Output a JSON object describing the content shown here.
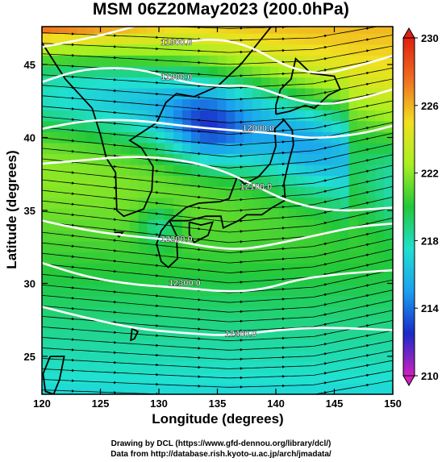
{
  "chart_data": {
    "type": "heatmap",
    "title": "MSM 06Z20May2023 (200.0hPa)",
    "xlabel": "Longitude (degrees)",
    "ylabel": "Latitude  (degrees)",
    "xlim": [
      120,
      150
    ],
    "ylim": [
      22.4,
      47.6
    ],
    "xticks": [
      120,
      125,
      130,
      135,
      140,
      145,
      150
    ],
    "yticks": [
      25,
      30,
      35,
      40,
      45
    ],
    "colorbar": {
      "min": 210,
      "max": 230,
      "ticks": [
        210,
        214,
        218,
        222,
        226,
        230
      ],
      "colors": [
        "#d020c0",
        "#1a2ac8",
        "#1aa0f0",
        "#20e0d0",
        "#22c83a",
        "#a8f020",
        "#f0e020",
        "#f07020",
        "#e02010"
      ]
    },
    "contours": [
      {
        "label": "11900.0",
        "points": [
          [
            120,
            46.2
          ],
          [
            124,
            46.8
          ],
          [
            127,
            47.4
          ],
          [
            129.5,
            48
          ]
        ]
      },
      {
        "label": "11900.0",
        "points": [
          [
            131.5,
            46.5
          ],
          [
            135,
            46.8
          ],
          [
            138,
            46.2
          ],
          [
            141,
            44.8
          ],
          [
            144,
            44.3
          ],
          [
            147,
            44.9
          ],
          [
            150,
            45.6
          ]
        ]
      },
      {
        "label": "11900.0",
        "points": [
          [
            120,
            43.8
          ],
          [
            123,
            44.6
          ],
          [
            126,
            44.8
          ],
          [
            129,
            44.6
          ],
          [
            132,
            43.8
          ],
          [
            135,
            43.5
          ],
          [
            138,
            43.6
          ],
          [
            141,
            42.7
          ],
          [
            144,
            42.2
          ],
          [
            147,
            42.6
          ],
          [
            150,
            43.3
          ]
        ]
      },
      {
        "label": "12000.0",
        "points": [
          [
            120,
            40.6
          ],
          [
            124,
            41.2
          ],
          [
            128,
            41.2
          ],
          [
            132,
            40.8
          ],
          [
            136,
            40.5
          ],
          [
            140,
            40.3
          ],
          [
            143,
            39.9
          ],
          [
            147,
            40.2
          ],
          [
            150,
            40.8
          ]
        ]
      },
      {
        "label": "12100.0",
        "points": [
          [
            120,
            38.2
          ],
          [
            123,
            38.4
          ],
          [
            127,
            38.7
          ],
          [
            131,
            38.6
          ],
          [
            135,
            37.9
          ],
          [
            138,
            36.8
          ],
          [
            141,
            35.6
          ],
          [
            145,
            34.9
          ],
          [
            150,
            35.2
          ]
        ]
      },
      {
        "label": "12200.0",
        "points": [
          [
            120,
            34.3
          ],
          [
            124,
            33.6
          ],
          [
            128,
            33.2
          ],
          [
            131,
            33.0
          ],
          [
            134,
            32.5
          ],
          [
            137,
            32.3
          ],
          [
            140,
            32.7
          ],
          [
            144,
            33.4
          ],
          [
            147,
            33.9
          ],
          [
            150,
            34.1
          ]
        ]
      },
      {
        "label": "12300.0",
        "points": [
          [
            120,
            31.4
          ],
          [
            124,
            30.4
          ],
          [
            128,
            29.9
          ],
          [
            132,
            29.7
          ],
          [
            136,
            29.4
          ],
          [
            139,
            29.6
          ],
          [
            142,
            30.3
          ],
          [
            146,
            30.7
          ],
          [
            150,
            30.9
          ]
        ]
      },
      {
        "label": "12400.0",
        "points": [
          [
            120,
            28.4
          ],
          [
            124,
            27.6
          ],
          [
            128,
            26.9
          ],
          [
            132,
            26.6
          ],
          [
            136,
            26.4
          ],
          [
            140,
            26.8
          ],
          [
            144,
            27.0
          ],
          [
            150,
            26.8
          ]
        ]
      }
    ],
    "contour_labels": [
      {
        "text": "11900.0",
        "lon": 131.5,
        "lat": 46.5
      },
      {
        "text": "11900.0",
        "lon": 131.5,
        "lat": 44.1
      },
      {
        "text": "12000.0",
        "lon": 138.5,
        "lat": 40.6
      },
      {
        "text": "12100.0",
        "lon": 138.3,
        "lat": 36.6
      },
      {
        "text": "12200.0",
        "lon": 131.5,
        "lat": 33.0
      },
      {
        "text": "12300.0",
        "lon": 132.2,
        "lat": 30.0
      },
      {
        "text": "12400.0",
        "lon": 137.0,
        "lat": 26.5
      }
    ],
    "grid": true,
    "legend": "colorbar-right"
  },
  "credits": {
    "line1": "Drawing by DCL (https://www.gfd-dennou.org/library/dcl/)",
    "line2": "Data from http://database.rish.kyoto-u.ac.jp/arch/jmadata/"
  }
}
